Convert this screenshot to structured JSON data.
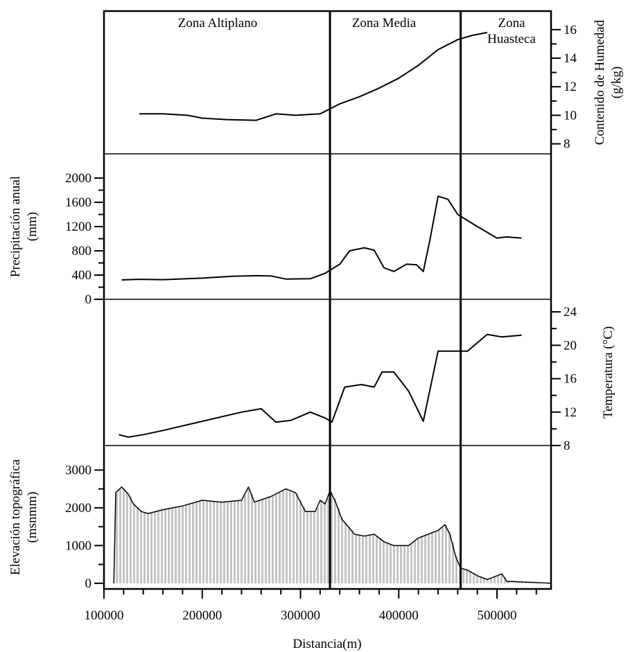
{
  "chart_data": {
    "type": "line",
    "xlabel": "Distancia(m)",
    "x_ticks": [
      100000,
      200000,
      300000,
      400000,
      500000
    ],
    "xlim": [
      100000,
      555000
    ],
    "zones": [
      {
        "name": "Zona Altiplano",
        "start": 100000,
        "end": 330000
      },
      {
        "name": "Zona Media",
        "start": 330000,
        "end": 463000
      },
      {
        "name": "Zona Huasteca",
        "start": 463000,
        "end": 555000
      }
    ],
    "zone_boundaries": [
      330000,
      463000
    ],
    "panels": [
      {
        "id": "humedad",
        "ylabel": "Contenido de Humedad (g/kg)",
        "ylabel_lines": [
          "Contenido de Humedad",
          "(g/kg)"
        ],
        "axis_side": "right",
        "ylim": [
          7.3,
          17.3
        ],
        "y_ticks": [
          8,
          10,
          12,
          14,
          16
        ],
        "x": [
          136000,
          160000,
          185000,
          200000,
          225000,
          255000,
          275000,
          295000,
          320000,
          340000,
          360000,
          380000,
          400000,
          420000,
          440000,
          460000,
          475000,
          490000
        ],
        "y": [
          10.1,
          10.1,
          10.0,
          9.8,
          9.7,
          9.65,
          10.1,
          10.0,
          10.1,
          10.8,
          11.3,
          11.9,
          12.6,
          13.5,
          14.6,
          15.3,
          15.6,
          15.8
        ]
      },
      {
        "id": "precipitacion",
        "ylabel": "Precipitación anual (mm)",
        "ylabel_lines": [
          "Precipitación anual",
          "(mm)"
        ],
        "axis_side": "left",
        "ylim": [
          0,
          2400
        ],
        "y_ticks": [
          0,
          400,
          800,
          1200,
          1600,
          2000
        ],
        "x": [
          118000,
          135000,
          160000,
          200000,
          230000,
          255000,
          270000,
          285000,
          310000,
          325000,
          340000,
          350000,
          365000,
          375000,
          385000,
          395000,
          408000,
          418000,
          425000,
          432000,
          440000,
          450000,
          460000,
          480000,
          500000,
          510000,
          525000
        ],
        "y": [
          320,
          330,
          325,
          350,
          380,
          390,
          385,
          335,
          340,
          430,
          580,
          800,
          850,
          810,
          520,
          460,
          580,
          570,
          460,
          1000,
          1700,
          1650,
          1400,
          1200,
          1010,
          1030,
          1010
        ]
      },
      {
        "id": "temperatura",
        "ylabel": "Temperatura (°C)",
        "ylabel_lines": [
          "Temperatura  (°C)"
        ],
        "axis_side": "right",
        "ylim": [
          8,
          25.5
        ],
        "y_ticks": [
          8,
          12,
          16,
          20,
          24
        ],
        "x": [
          115000,
          125000,
          140000,
          160000,
          200000,
          240000,
          260000,
          275000,
          290000,
          310000,
          325000,
          332000,
          345000,
          362000,
          375000,
          383000,
          395000,
          410000,
          425000,
          440000,
          455000,
          470000,
          490000,
          505000,
          525000
        ],
        "y": [
          9.3,
          9.0,
          9.3,
          9.8,
          10.9,
          12.0,
          12.4,
          10.8,
          11.0,
          12.0,
          11.3,
          10.8,
          15.0,
          15.3,
          15.0,
          16.8,
          16.8,
          14.5,
          10.9,
          19.3,
          19.3,
          19.3,
          21.3,
          21.0,
          21.2
        ]
      },
      {
        "id": "elevacion",
        "type": "area",
        "ylabel": "Elevación topográfica (msnmm)",
        "ylabel_lines": [
          "Elevación topográfica",
          "(msnmm)"
        ],
        "axis_side": "left",
        "ylim": [
          -150,
          3650
        ],
        "y_ticks": [
          0,
          1000,
          2000,
          3000
        ],
        "x": [
          110000,
          112000,
          118000,
          125000,
          130000,
          138000,
          145000,
          160000,
          180000,
          200000,
          220000,
          240000,
          247000,
          253000,
          270000,
          285000,
          295000,
          305000,
          315000,
          320000,
          325000,
          330000,
          335000,
          342000,
          355000,
          365000,
          375000,
          385000,
          395000,
          410000,
          420000,
          430000,
          440000,
          447000,
          452000,
          458000,
          463000,
          470000,
          480000,
          490000,
          505000,
          510000,
          515000,
          530000,
          555000
        ],
        "y": [
          0,
          2400,
          2550,
          2350,
          2100,
          1900,
          1850,
          1950,
          2050,
          2200,
          2150,
          2200,
          2550,
          2150,
          2300,
          2500,
          2400,
          1900,
          1900,
          2200,
          2100,
          2450,
          2200,
          1700,
          1300,
          1250,
          1300,
          1100,
          1000,
          1000,
          1200,
          1300,
          1400,
          1550,
          1300,
          700,
          400,
          350,
          200,
          100,
          250,
          50,
          50,
          30,
          0
        ]
      }
    ]
  }
}
